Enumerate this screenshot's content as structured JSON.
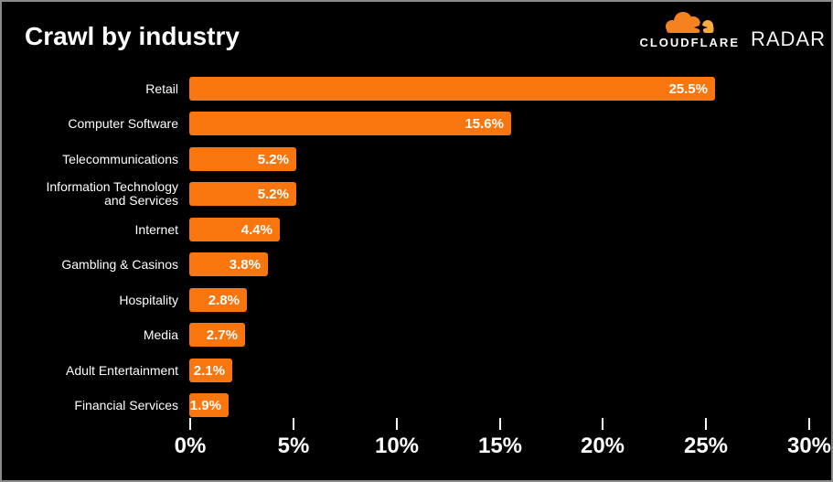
{
  "header": {
    "title": "Crawl by industry"
  },
  "logo": {
    "brand": "CLOUDFLARE",
    "product": "RADAR",
    "cloud_main_color": "#F6821F",
    "cloud_light_color": "#FAAD3F"
  },
  "chart_data": {
    "type": "bar",
    "orientation": "horizontal",
    "title": "Crawl by industry",
    "categories": [
      "Retail",
      "Computer Software",
      "Telecommunications",
      "Information Technology and Services",
      "Internet",
      "Gambling & Casinos",
      "Hospitality",
      "Media",
      "Adult Entertainment",
      "Financial Services"
    ],
    "values": [
      25.5,
      15.6,
      5.2,
      5.2,
      4.4,
      3.8,
      2.8,
      2.7,
      2.1,
      1.9
    ],
    "value_labels": [
      "25.5%",
      "15.6%",
      "5.2%",
      "5.2%",
      "4.4%",
      "3.8%",
      "2.8%",
      "2.7%",
      "2.1%",
      "1.9%"
    ],
    "x_axis": {
      "min": 0,
      "max": 30,
      "tick_values": [
        0,
        5,
        10,
        15,
        20,
        25,
        30
      ],
      "tick_labels": [
        "0%",
        "5%",
        "10%",
        "15%",
        "20%",
        "25%",
        "30%"
      ]
    },
    "bar_color": "#F8760D",
    "background_color": "#000000",
    "text_color": "#FFFFFF",
    "grid": false,
    "legend": false
  }
}
